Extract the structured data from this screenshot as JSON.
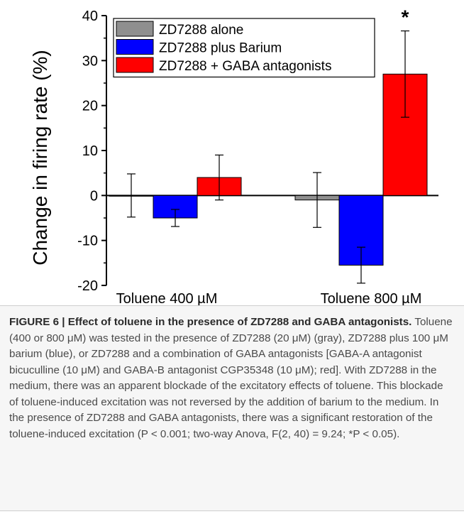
{
  "chart_data": {
    "type": "bar",
    "ylabel": "Change in firing rate (%)",
    "xlabel": "",
    "ylim": [
      -20,
      40
    ],
    "yticks": [
      -20,
      -10,
      0,
      10,
      20,
      30,
      40
    ],
    "categories": [
      "Toluene 400 µM",
      "Toluene 800 µM"
    ],
    "series": [
      {
        "name": "ZD7288 alone",
        "color": "#8f8f8f",
        "values": [
          0,
          -1
        ],
        "errors": [
          4.8,
          6.1
        ]
      },
      {
        "name": "ZD7288 plus Barium",
        "color": "#0000ff",
        "values": [
          -5,
          -15.5
        ],
        "errors": [
          1.9,
          4.0
        ]
      },
      {
        "name": "ZD7288 + GABA antagonists",
        "color": "#ff0000",
        "values": [
          4,
          27
        ],
        "errors": [
          5.0,
          9.6
        ]
      }
    ],
    "annotations": [
      {
        "text": "*",
        "category_index": 1,
        "series_index": 2
      }
    ],
    "legend_position": "top-left"
  },
  "caption": {
    "title": "FIGURE 6 | Effect of toluene in the presence of ZD7288 and GABA antagonists.",
    "body": "Toluene (400 or 800 μM) was tested in the presence of ZD7288 (20 μM) (gray), ZD7288 plus 100 μM barium (blue), or ZD7288 and a combination of GABA antagonists [GABA-A antagonist bicuculline (10 μM) and GABA-B antagonist CGP35348 (10 μM); red]. With ZD7288 in the medium, there was an apparent blockade of the excitatory effects of toluene. This blockade of toluene-induced excitation was not reversed by the addition of barium to the medium. In the presence of ZD7288 and GABA antagonists, there was a significant restoration of the toluene-induced excitation",
    "stats": "(P < 0.001; two-way Anova, F(2, 40) = 9.24; *P < 0.05)."
  }
}
